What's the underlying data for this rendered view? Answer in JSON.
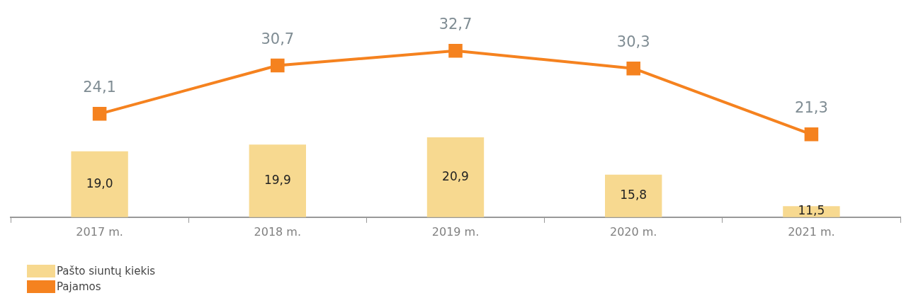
{
  "chart_data": {
    "type": "bar",
    "categories": [
      "2017 m.",
      "2018 m.",
      "2019 m.",
      "2020 m.",
      "2021 m."
    ],
    "series": [
      {
        "name": "Pašto siuntų kiekis",
        "color": "#f7d990",
        "values": [
          19.0,
          19.9,
          20.9,
          15.8,
          11.5
        ],
        "value_labels": [
          "19,0",
          "19,9",
          "20,9",
          "15,8",
          "11,5"
        ]
      },
      {
        "name": "Pajamos",
        "type": "line",
        "color": "#f5821f",
        "values": [
          24.1,
          30.7,
          32.7,
          30.3,
          21.3
        ],
        "value_labels": [
          "24,1",
          "30,7",
          "32,7",
          "30,3",
          "21,3"
        ]
      }
    ],
    "tick_labels": "x",
    "legend": "bottom left",
    "grid": false,
    "marker": "square",
    "line_style": "solid"
  }
}
